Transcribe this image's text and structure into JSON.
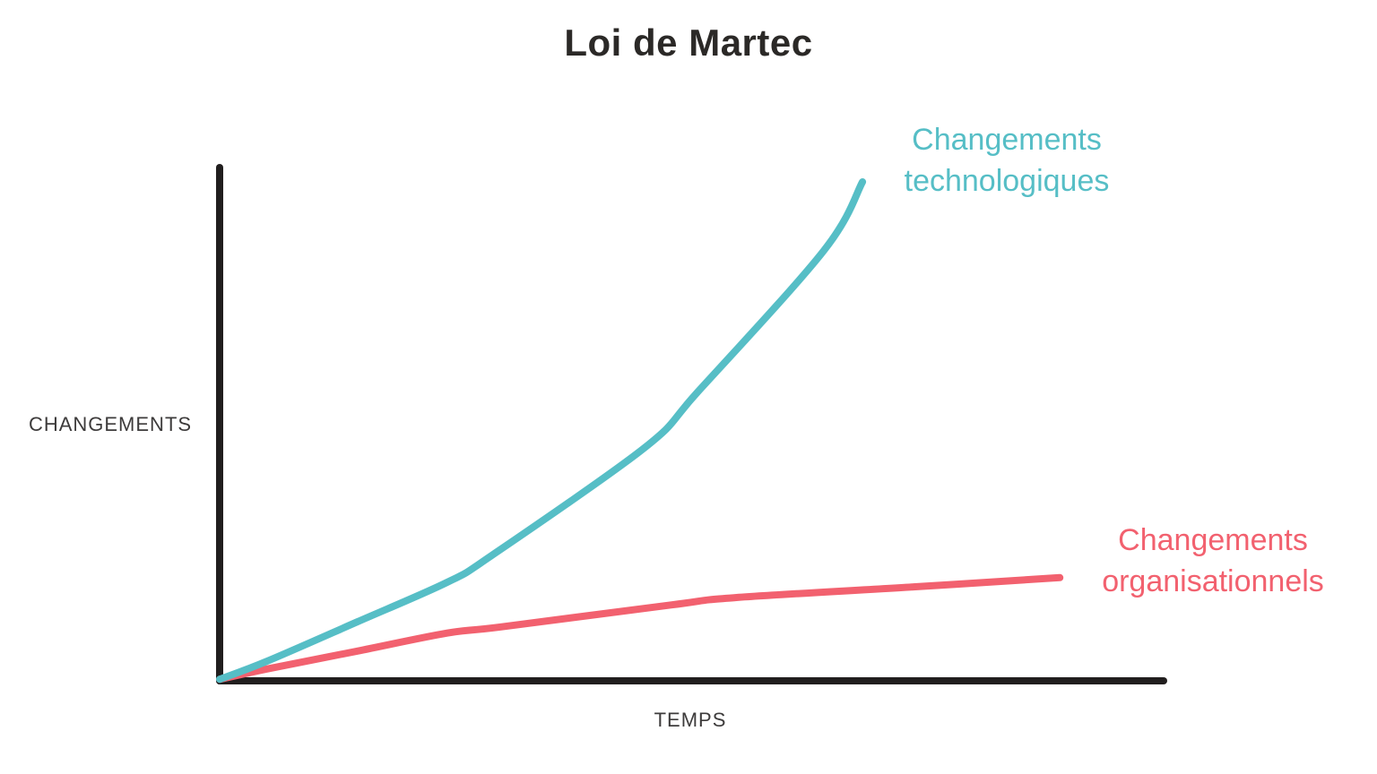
{
  "title": "Loi de Martec",
  "colors": {
    "background": "#ffffff",
    "axis": "#211e1e",
    "title_text": "#2b2927",
    "axis_label_text": "#3d3b3b",
    "teal": "#56bec6",
    "pink": "#f2616f"
  },
  "chart_data": {
    "type": "line",
    "title": "Loi de Martec",
    "xlabel": "TEMPS",
    "ylabel": "CHANGEMENTS",
    "x_range": [
      0,
      1
    ],
    "y_range": [
      0,
      1
    ],
    "grid": false,
    "ticks": "none (bare qualitative axes, no tick marks or numeric labels)",
    "legend_position": "labels placed directly at curve ends",
    "series": [
      {
        "name": "Changements technologiques",
        "label_lines": [
          "Changements",
          "technologiques"
        ],
        "color": "#56bec6",
        "shape": "exponential growth, ends high at ~68% of time axis",
        "points": [
          [
            0.0,
            0.003
          ],
          [
            0.05,
            0.038
          ],
          [
            0.146,
            0.115
          ],
          [
            0.241,
            0.192
          ],
          [
            0.288,
            0.244
          ],
          [
            0.45,
            0.454
          ],
          [
            0.507,
            0.564
          ],
          [
            0.64,
            0.838
          ],
          [
            0.681,
            0.972
          ]
        ]
      },
      {
        "name": "Changements organisationnels",
        "label_lines": [
          "Changements",
          "organisationnels"
        ],
        "color": "#f2616f",
        "shape": "logarithmic / saturating slow growth, ends low at ~89% of time axis",
        "points": [
          [
            0.0,
            0.003
          ],
          [
            0.05,
            0.023
          ],
          [
            0.146,
            0.058
          ],
          [
            0.241,
            0.093
          ],
          [
            0.298,
            0.105
          ],
          [
            0.479,
            0.148
          ],
          [
            0.545,
            0.162
          ],
          [
            0.735,
            0.183
          ],
          [
            0.89,
            0.201
          ]
        ]
      }
    ]
  }
}
